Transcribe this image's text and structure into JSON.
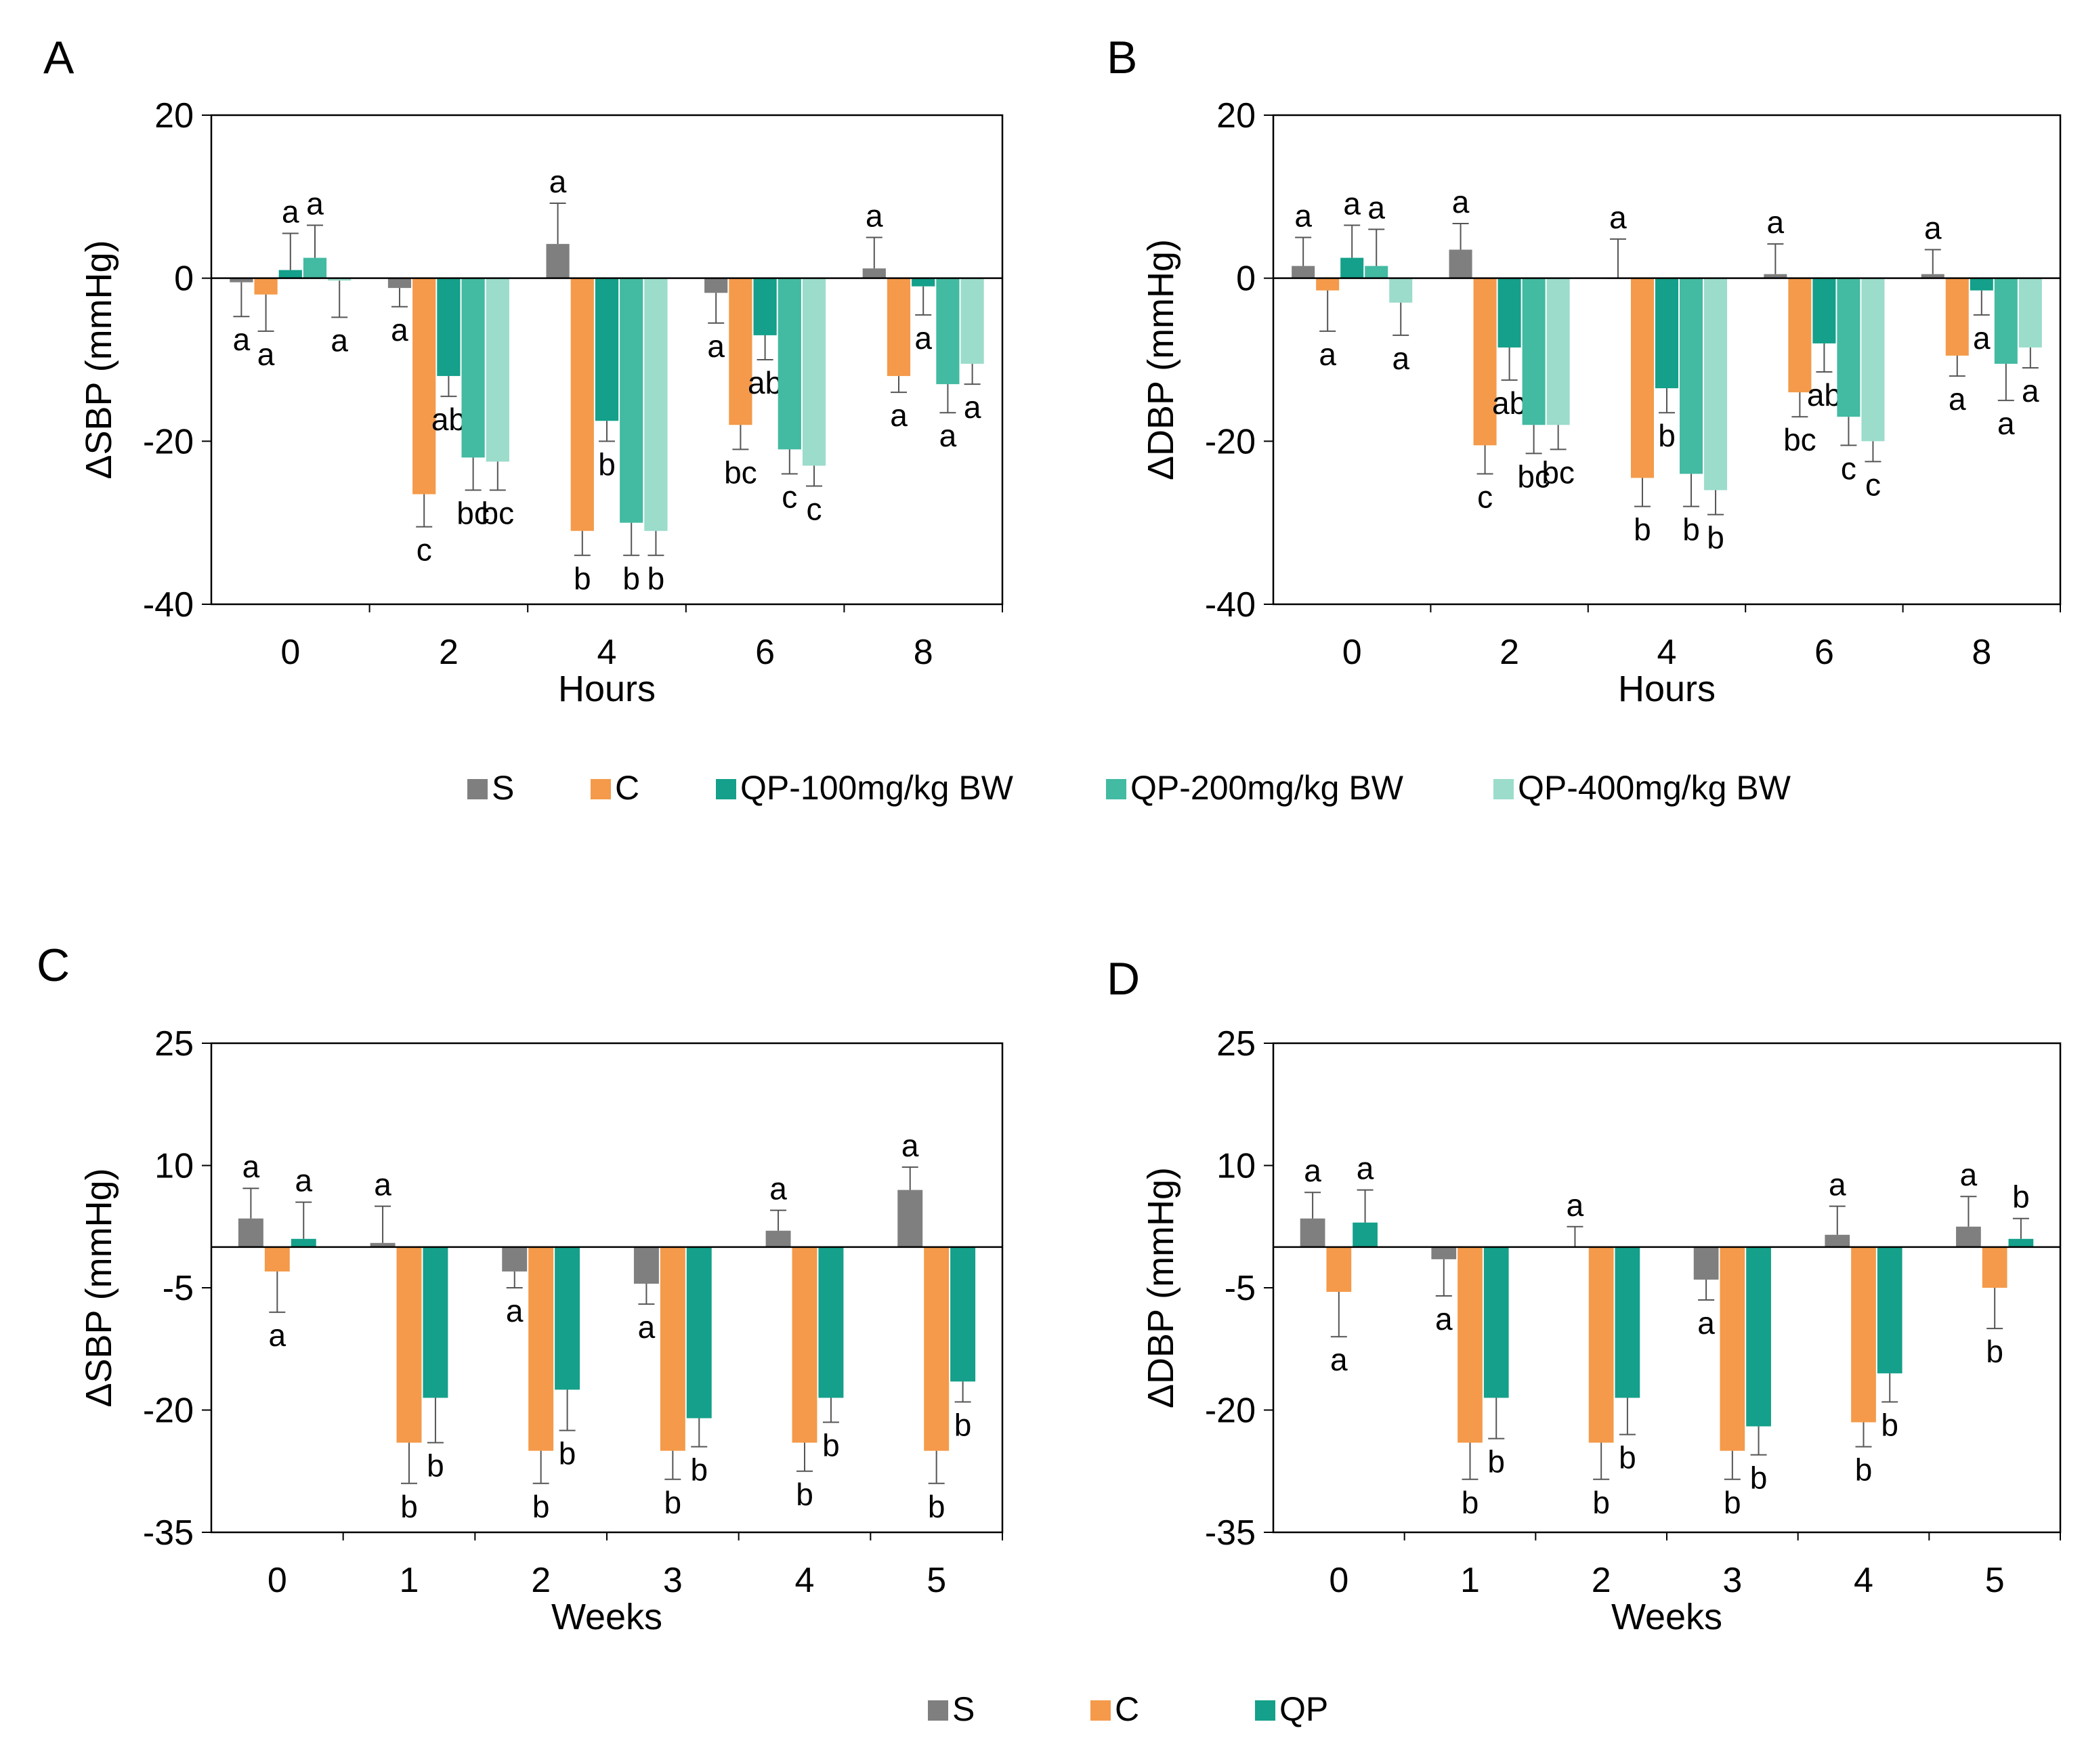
{
  "chart_data": [
    {
      "type": "bar",
      "panel": "A",
      "xlabel": "Hours",
      "ylabel": "ΔSBP (mmHg)",
      "ylim": [
        -40,
        20
      ],
      "yticks": [
        20,
        0,
        -20,
        -40
      ],
      "categories": [
        "0",
        "2",
        "4",
        "6",
        "8"
      ],
      "legend": "shared-bottom",
      "series": [
        {
          "name": "S",
          "color": "#7f7f7f",
          "values": [
            -0.5,
            -1.2,
            4.2,
            -1.8,
            1.2
          ],
          "errors": [
            4.2,
            2.3,
            5.0,
            3.7,
            3.8
          ],
          "labels": [
            "a",
            "a",
            "a",
            "a",
            "a"
          ]
        },
        {
          "name": "C",
          "color": "#f49a4a",
          "values": [
            -2.0,
            -26.5,
            -31.0,
            -18.0,
            -12.0
          ],
          "errors": [
            4.5,
            4.0,
            3.0,
            3.0,
            2.0
          ],
          "labels": [
            "a",
            "c",
            "b",
            "bc",
            "a"
          ]
        },
        {
          "name": "QP-100mg/kg BW",
          "color": "#14a08a",
          "values": [
            1.0,
            -12.0,
            -17.5,
            -7.0,
            -1.0
          ],
          "errors": [
            4.5,
            2.5,
            2.5,
            3.0,
            3.5
          ],
          "labels": [
            "a",
            "ab",
            "b",
            "ab",
            "a"
          ]
        },
        {
          "name": "QP-200mg/kg BW",
          "color": "#43baa2",
          "values": [
            2.5,
            -22.0,
            -30.0,
            -21.0,
            -13.0
          ],
          "errors": [
            4.0,
            4.0,
            4.0,
            3.0,
            3.5
          ],
          "labels": [
            "a",
            "bc",
            "b",
            "c",
            "a"
          ]
        },
        {
          "name": "QP-400mg/kg BW",
          "color": "#9bdccb",
          "values": [
            -0.3,
            -22.5,
            -31.0,
            -23.0,
            -10.5
          ],
          "errors": [
            4.5,
            3.5,
            3.0,
            2.5,
            2.5
          ],
          "labels": [
            "a",
            "bc",
            "b",
            "c",
            "a"
          ]
        }
      ]
    },
    {
      "type": "bar",
      "panel": "B",
      "xlabel": "Hours",
      "ylabel": "ΔDBP (mmHg)",
      "ylim": [
        -40,
        20
      ],
      "yticks": [
        20,
        0,
        -20,
        -40
      ],
      "categories": [
        "0",
        "2",
        "4",
        "6",
        "8"
      ],
      "legend": "shared-bottom",
      "series": [
        {
          "name": "S",
          "color": "#7f7f7f",
          "values": [
            1.5,
            3.5,
            0.0,
            0.5,
            0.5
          ],
          "errors": [
            3.5,
            3.2,
            4.8,
            3.7,
            3.0
          ],
          "labels": [
            "a",
            "a",
            "a",
            "a",
            "a"
          ]
        },
        {
          "name": "C",
          "color": "#f49a4a",
          "values": [
            -1.5,
            -20.5,
            -24.5,
            -14.0,
            -9.5
          ],
          "errors": [
            5.0,
            3.5,
            3.5,
            3.0,
            2.5
          ],
          "labels": [
            "a",
            "c",
            "b",
            "bc",
            "a"
          ]
        },
        {
          "name": "QP-100mg/kg BW",
          "color": "#14a08a",
          "values": [
            2.5,
            -8.5,
            -13.5,
            -8.0,
            -1.5
          ],
          "errors": [
            4.0,
            4.0,
            3.0,
            3.5,
            3.0
          ],
          "labels": [
            "a",
            "ab",
            "b",
            "ab",
            "a"
          ]
        },
        {
          "name": "QP-200mg/kg BW",
          "color": "#43baa2",
          "values": [
            1.5,
            -18.0,
            -24.0,
            -17.0,
            -10.5
          ],
          "errors": [
            4.5,
            3.5,
            4.0,
            3.5,
            4.5
          ],
          "labels": [
            "a",
            "bc",
            "b",
            "c",
            "a"
          ]
        },
        {
          "name": "QP-400mg/kg BW",
          "color": "#9bdccb",
          "values": [
            -3.0,
            -18.0,
            -26.0,
            -20.0,
            -8.5
          ],
          "errors": [
            4.0,
            3.0,
            3.0,
            2.5,
            2.5
          ],
          "labels": [
            "a",
            "bc",
            "b",
            "c",
            "a"
          ]
        }
      ]
    },
    {
      "type": "bar",
      "panel": "C",
      "xlabel": "Weeks",
      "ylabel": "ΔSBP (mmHg)",
      "ylim": [
        -35,
        25
      ],
      "yticks": [
        25,
        10,
        -5,
        -20,
        -35
      ],
      "categories": [
        "0",
        "1",
        "2",
        "3",
        "4",
        "5"
      ],
      "legend": "shared-bottom",
      "series": [
        {
          "name": "S",
          "color": "#7f7f7f",
          "values": [
            3.5,
            0.5,
            -3.0,
            -4.5,
            2.0,
            7.0
          ],
          "errors": [
            3.7,
            4.5,
            2.0,
            2.5,
            2.5,
            2.8
          ],
          "labels": [
            "a",
            "a",
            "a",
            "a",
            "a",
            "a"
          ]
        },
        {
          "name": "C",
          "color": "#f49a4a",
          "values": [
            -3.0,
            -24.0,
            -25.0,
            -25.0,
            -24.0,
            -25.0
          ],
          "errors": [
            5.0,
            5.0,
            4.0,
            3.5,
            3.5,
            4.0
          ],
          "labels": [
            "a",
            "b",
            "b",
            "b",
            "b",
            "b"
          ]
        },
        {
          "name": "QP",
          "color": "#14a08a",
          "values": [
            1.0,
            -18.5,
            -17.5,
            -21.0,
            -18.5,
            -16.5
          ],
          "errors": [
            4.5,
            5.5,
            5.0,
            3.5,
            3.0,
            2.5
          ],
          "labels": [
            "a",
            "b",
            "b",
            "b",
            "b",
            "b"
          ]
        }
      ]
    },
    {
      "type": "bar",
      "panel": "D",
      "xlabel": "Weeks",
      "ylabel": "ΔDBP (mmHg)",
      "ylim": [
        -35,
        25
      ],
      "yticks": [
        25,
        10,
        -5,
        -20,
        -35
      ],
      "categories": [
        "0",
        "1",
        "2",
        "3",
        "4",
        "5"
      ],
      "legend": "shared-bottom",
      "series": [
        {
          "name": "S",
          "color": "#7f7f7f",
          "values": [
            3.5,
            -1.5,
            0.0,
            -4.0,
            1.5,
            2.5
          ],
          "errors": [
            3.2,
            4.5,
            2.5,
            2.5,
            3.5,
            3.7
          ],
          "labels": [
            "a",
            "a",
            "a",
            "a",
            "a",
            "a"
          ]
        },
        {
          "name": "C",
          "color": "#f49a4a",
          "values": [
            -5.5,
            -24.0,
            -24.0,
            -25.0,
            -21.5,
            -5.0
          ],
          "errors": [
            5.5,
            4.5,
            4.5,
            3.5,
            3.0,
            5.0
          ],
          "labels": [
            "a",
            "b",
            "b",
            "b",
            "b",
            "b"
          ]
        },
        {
          "name": "QP",
          "color": "#14a08a",
          "values": [
            3.0,
            -18.5,
            -18.5,
            -22.0,
            -15.5,
            1.0
          ],
          "errors": [
            4.0,
            5.0,
            4.5,
            3.5,
            3.5,
            2.5
          ],
          "labels": [
            "a",
            "b",
            "b",
            "b",
            "b",
            "b"
          ]
        }
      ]
    }
  ]
}
